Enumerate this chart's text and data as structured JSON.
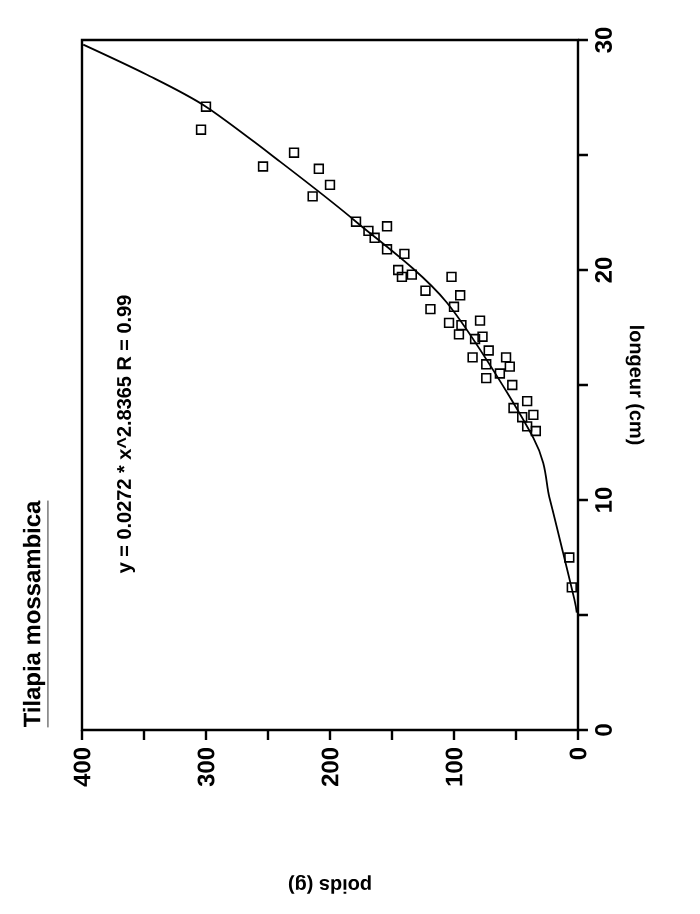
{
  "chart_data": {
    "type": "scatter",
    "title": "Tilapia mossambica",
    "xlabel": "poids (g)",
    "ylabel": "longeur (cm)",
    "annotations": [
      "y = 0.0272 * x^2.8365   R = 0.99"
    ],
    "xlim": [
      400,
      0
    ],
    "xticks": [
      400,
      {
        "value": 350,
        "label": null
      },
      300,
      {
        "value": 250,
        "label": null
      },
      200,
      {
        "value": 150,
        "label": null
      },
      100,
      {
        "value": 50,
        "label": null
      },
      0
    ],
    "ylim": [
      0,
      30
    ],
    "yticks": [
      0,
      {
        "value": 5,
        "label": null
      },
      10,
      {
        "value": 15,
        "label": null
      },
      20,
      {
        "value": 25,
        "label": null
      },
      30
    ],
    "marker": "square",
    "series": [
      {
        "color": "#000000",
        "x": [
          300,
          304,
          254,
          229,
          209,
          200,
          214,
          179,
          169,
          154,
          164,
          154,
          140,
          145,
          134,
          142,
          102,
          95,
          123,
          119,
          100,
          104,
          79,
          94,
          96,
          83,
          77,
          85,
          72,
          58,
          74,
          55,
          74,
          63,
          53,
          52,
          41,
          36,
          41,
          34,
          45,
          7,
          5
        ],
        "values": [
          27.1,
          26.1,
          24.5,
          25.1,
          24.4,
          23.7,
          23.2,
          22.1,
          21.7,
          21.9,
          21.4,
          20.9,
          20.7,
          20.0,
          19.8,
          19.7,
          19.7,
          18.9,
          19.1,
          18.3,
          18.4,
          17.7,
          17.8,
          17.6,
          17.2,
          17.0,
          17.1,
          16.2,
          16.5,
          16.2,
          15.9,
          15.8,
          15.3,
          15.5,
          15.0,
          14.0,
          14.3,
          13.7,
          13.2,
          13.0,
          13.6,
          7.5,
          6.2
        ]
      },
      {
        "type": "line",
        "color": "#000000",
        "marker": "none",
        "x": [
          399,
          348,
          300,
          240,
          179,
          106,
          36,
          23,
          12,
          3,
          1
        ],
        "values": [
          29.8,
          28.5,
          27.1,
          24.7,
          22.1,
          18.6,
          12.7,
          10.1,
          7.7,
          5.7,
          5.1
        ]
      }
    ]
  }
}
